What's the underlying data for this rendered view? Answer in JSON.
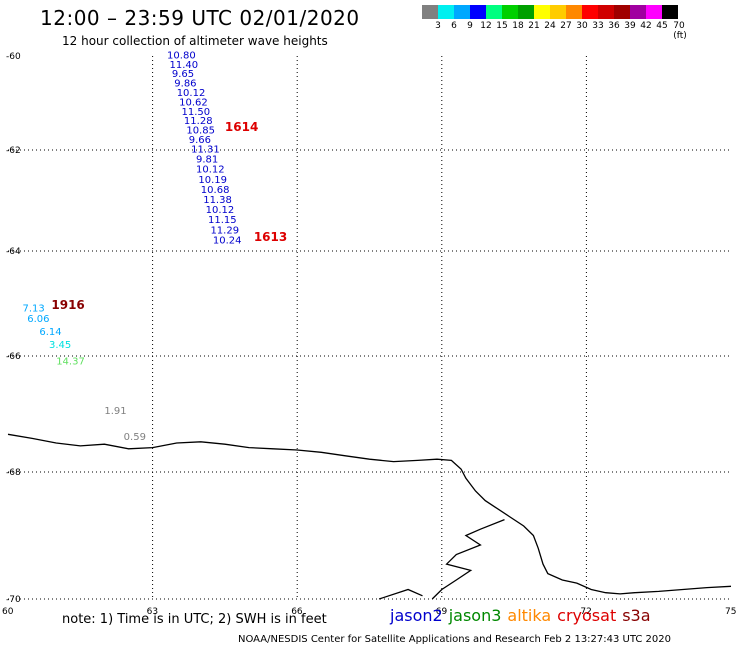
{
  "header": {
    "title": "12:00 – 23:59 UTC 02/01/2020",
    "subtitle": "12 hour collection of altimeter wave heights"
  },
  "color_scale": {
    "colors": [
      "#808080",
      "#00f0f0",
      "#00a8ff",
      "#0000ff",
      "#00ff80",
      "#00d000",
      "#00a000",
      "#ffff00",
      "#ffcc00",
      "#ff8800",
      "#ff0000",
      "#d00000",
      "#a00000",
      "#a000a0",
      "#ff00ff",
      "#000000"
    ],
    "labels": [
      "3",
      "6",
      "9",
      "12",
      "15",
      "18",
      "21",
      "24",
      "27",
      "30",
      "33",
      "36",
      "39",
      "42",
      "45",
      "70 (ft)"
    ]
  },
  "axes": {
    "lat_labels": [
      "-60",
      "-62",
      "-64",
      "-66",
      "-68",
      "-70"
    ],
    "lon_labels": [
      "60",
      "63",
      "66",
      "69",
      "72",
      "75"
    ]
  },
  "passes": [
    {
      "label": "1614",
      "label_color": "#dd0000",
      "label_lat": -61.6,
      "label_lon": 64.5,
      "value_color": "#0000cc",
      "points": [
        {
          "lat": -60.05,
          "lon": 63.3,
          "v": "10.80"
        },
        {
          "lat": -60.25,
          "lon": 63.35,
          "v": "11.40"
        },
        {
          "lat": -60.45,
          "lon": 63.4,
          "v": "9.65"
        },
        {
          "lat": -60.65,
          "lon": 63.45,
          "v": "9.86"
        },
        {
          "lat": -60.85,
          "lon": 63.5,
          "v": "10.12"
        },
        {
          "lat": -61.05,
          "lon": 63.55,
          "v": "10.62"
        },
        {
          "lat": -61.25,
          "lon": 63.6,
          "v": "11.50"
        },
        {
          "lat": -61.45,
          "lon": 63.65,
          "v": "11.28"
        },
        {
          "lat": -61.65,
          "lon": 63.7,
          "v": "10.85"
        },
        {
          "lat": -61.85,
          "lon": 63.75,
          "v": "9.66"
        },
        {
          "lat": -62.05,
          "lon": 63.8,
          "v": "11.31"
        },
        {
          "lat": -62.25,
          "lon": 63.9,
          "v": "9.81"
        },
        {
          "lat": -62.45,
          "lon": 63.9,
          "v": "10.12"
        },
        {
          "lat": -62.65,
          "lon": 63.95,
          "v": "10.19"
        },
        {
          "lat": -62.85,
          "lon": 64.0,
          "v": "10.68"
        },
        {
          "lat": -63.05,
          "lon": 64.05,
          "v": "11.38"
        },
        {
          "lat": -63.25,
          "lon": 64.1,
          "v": "10.12"
        },
        {
          "lat": -63.45,
          "lon": 64.15,
          "v": "11.15"
        },
        {
          "lat": -63.65,
          "lon": 64.2,
          "v": "11.29"
        },
        {
          "lat": -63.85,
          "lon": 64.25,
          "v": "10.24"
        }
      ]
    },
    {
      "label": "1613",
      "label_color": "#dd0000",
      "label_lat": -63.8,
      "label_lon": 65.1,
      "value_color": "#0000cc",
      "points": []
    },
    {
      "label": "1916",
      "label_color": "#880000",
      "label_lat": -65.1,
      "label_lon": 60.9,
      "value_color": "",
      "points": [
        {
          "lat": -65.15,
          "lon": 60.3,
          "v": "7.13",
          "c": "#00a8ff"
        },
        {
          "lat": -65.35,
          "lon": 60.4,
          "v": "6.06",
          "c": "#00a8ff"
        },
        {
          "lat": -65.6,
          "lon": 60.65,
          "v": "6.14",
          "c": "#00a8ff"
        },
        {
          "lat": -65.85,
          "lon": 60.85,
          "v": "3.45",
          "c": "#00e0e0"
        },
        {
          "lat": -66.15,
          "lon": 61.0,
          "v": "14.37",
          "c": "#60e060"
        }
      ]
    },
    {
      "label": "",
      "label_color": "",
      "label_lat": 0,
      "label_lon": 0,
      "value_color": "#808080",
      "points": [
        {
          "lat": -67.0,
          "lon": 62.0,
          "v": "1.91"
        },
        {
          "lat": -67.45,
          "lon": 62.4,
          "v": "0.59"
        }
      ]
    }
  ],
  "coastline": [
    [
      60,
      -67.35
    ],
    [
      60.5,
      -67.42
    ],
    [
      61,
      -67.5
    ],
    [
      61.5,
      -67.55
    ],
    [
      62,
      -67.52
    ],
    [
      62.5,
      -67.6
    ],
    [
      63,
      -67.58
    ],
    [
      63.5,
      -67.5
    ],
    [
      64,
      -67.48
    ],
    [
      64.5,
      -67.52
    ],
    [
      65,
      -67.58
    ],
    [
      65.5,
      -67.6
    ],
    [
      66,
      -67.62
    ],
    [
      66.5,
      -67.66
    ],
    [
      67,
      -67.72
    ],
    [
      67.5,
      -67.78
    ],
    [
      68,
      -67.82
    ],
    [
      68.5,
      -67.8
    ],
    [
      68.9,
      -67.78
    ],
    [
      69.2,
      -67.8
    ],
    [
      69.4,
      -67.95
    ],
    [
      69.5,
      -68.1
    ],
    [
      69.7,
      -68.3
    ],
    [
      69.9,
      -68.45
    ],
    [
      70.1,
      -68.55
    ],
    [
      70.4,
      -68.7
    ],
    [
      70.7,
      -68.85
    ],
    [
      70.9,
      -69.0
    ],
    [
      71.0,
      -69.2
    ],
    [
      71.1,
      -69.45
    ],
    [
      71.2,
      -69.6
    ],
    [
      71.5,
      -69.7
    ],
    [
      71.8,
      -69.75
    ],
    [
      72.1,
      -69.85
    ],
    [
      72.4,
      -69.9
    ],
    [
      72.7,
      -69.92
    ],
    [
      73.0,
      -69.9
    ],
    [
      73.5,
      -69.88
    ],
    [
      74.0,
      -69.85
    ],
    [
      74.5,
      -69.82
    ],
    [
      75,
      -69.8
    ]
  ],
  "coastline2": [
    [
      70.3,
      -68.75
    ],
    [
      69.8,
      -68.9
    ],
    [
      69.5,
      -69.0
    ],
    [
      69.8,
      -69.15
    ],
    [
      69.3,
      -69.3
    ],
    [
      69.1,
      -69.45
    ],
    [
      69.6,
      -69.55
    ],
    [
      69.3,
      -69.7
    ],
    [
      69.0,
      -69.85
    ],
    [
      68.8,
      -70.0
    ]
  ],
  "coastline3": [
    [
      67.7,
      -70.0
    ],
    [
      68.3,
      -69.85
    ],
    [
      68.6,
      -69.95
    ]
  ],
  "note": "note:  1) Time is in UTC;  2) SWH is in feet",
  "satellites": [
    {
      "name": "jason2",
      "color": "#0000cc"
    },
    {
      "name": "jason3",
      "color": "#008800"
    },
    {
      "name": "altika",
      "color": "#ff8800"
    },
    {
      "name": "cryosat",
      "color": "#dd0000"
    },
    {
      "name": "s3a",
      "color": "#880000"
    }
  ],
  "footer": "NOAA/NESDIS Center for Satellite Applications and Research     Feb  2 13:27:43 UTC 2020"
}
